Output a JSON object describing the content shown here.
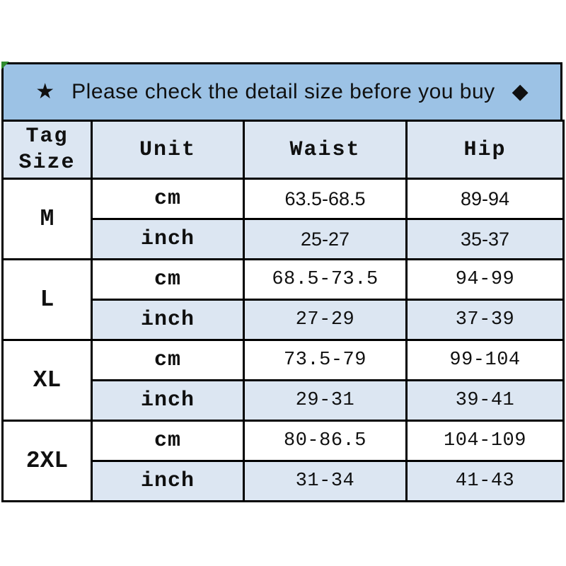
{
  "banner": {
    "star_icon": "★",
    "text": "Please check the detail size before you buy",
    "diamond_icon": "◆"
  },
  "table": {
    "headers": {
      "tag_size_line1": "Tag",
      "tag_size_line2": "Size",
      "unit": "Unit",
      "waist": "Waist",
      "hip": "Hip"
    },
    "unit_labels": {
      "cm": "cm",
      "inch": "inch"
    },
    "rows": [
      {
        "size": "M",
        "cm": {
          "waist": "63.5-68.5",
          "hip": "89-94"
        },
        "inch": {
          "waist": "25-27",
          "hip": "35-37"
        }
      },
      {
        "size": "L",
        "cm": {
          "waist": "68.5-73.5",
          "hip": "94-99"
        },
        "inch": {
          "waist": "27-29",
          "hip": "37-39"
        }
      },
      {
        "size": "XL",
        "cm": {
          "waist": "73.5-79",
          "hip": "99-104"
        },
        "inch": {
          "waist": "29-31",
          "hip": "39-41"
        }
      },
      {
        "size": "2XL",
        "cm": {
          "waist": "80-86.5",
          "hip": "104-109"
        },
        "inch": {
          "waist": "31-34",
          "hip": "41-43"
        }
      }
    ]
  },
  "colors": {
    "banner_bg": "#9cc2e5",
    "light_row_bg": "#dce6f2",
    "border": "#000000",
    "corner_accent": "#2e8b2e"
  },
  "chart_data": {
    "type": "table",
    "title": "Please check the detail size before you buy",
    "columns": [
      "Tag Size",
      "Unit",
      "Waist",
      "Hip"
    ],
    "rows": [
      [
        "M",
        "cm",
        "63.5-68.5",
        "89-94"
      ],
      [
        "M",
        "inch",
        "25-27",
        "35-37"
      ],
      [
        "L",
        "cm",
        "68.5-73.5",
        "94-99"
      ],
      [
        "L",
        "inch",
        "27-29",
        "37-39"
      ],
      [
        "XL",
        "cm",
        "73.5-79",
        "99-104"
      ],
      [
        "XL",
        "inch",
        "29-31",
        "39-41"
      ],
      [
        "2XL",
        "cm",
        "80-86.5",
        "104-109"
      ],
      [
        "2XL",
        "inch",
        "31-34",
        "41-43"
      ]
    ]
  }
}
